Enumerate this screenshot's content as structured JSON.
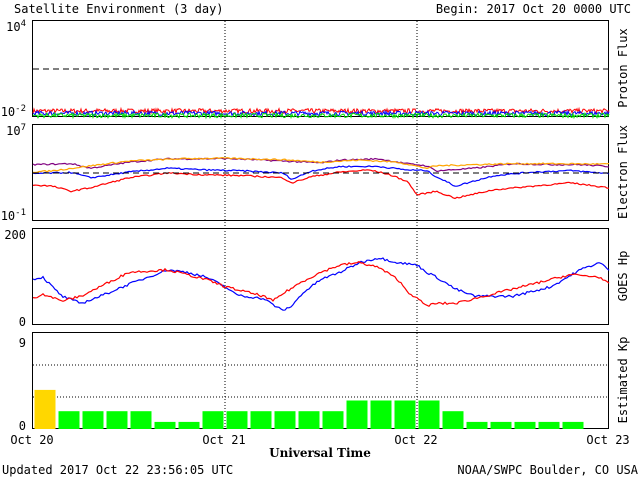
{
  "header": {
    "title": "Satellite Environment (3 day)",
    "begin": "Begin:  2017 Oct 20 0000 UTC"
  },
  "footer": {
    "updated": "Updated 2017 Oct 22 23:56:05 UTC",
    "credit": "NOAA/SWPC Boulder, CO USA"
  },
  "xaxis": {
    "label": "Universal Time",
    "ticks": [
      "Oct 20",
      "Oct 21",
      "Oct 22",
      "Oct 23"
    ]
  },
  "chart_data": [
    {
      "type": "line",
      "panel": "proton",
      "ylabel": "Proton Flux",
      "scale": "log",
      "ylim": [
        0.01,
        10000
      ],
      "yticks": [
        {
          "base": "10",
          "exp": "4"
        },
        {
          "base": "10",
          "exp": "-2"
        }
      ],
      "threshold": 10,
      "colors": [
        "#ff0000",
        "#0000ff",
        "#00dd00"
      ],
      "levels": [
        0.024,
        0.017,
        0.0125
      ]
    },
    {
      "type": "line",
      "panel": "electron",
      "ylabel": "Electron Flux",
      "scale": "log",
      "ylim": [
        0.1,
        10000000
      ],
      "yticks": [
        {
          "base": "10",
          "exp": "7"
        },
        {
          "base": "10",
          "exp": "-1"
        }
      ],
      "threshold": 1000,
      "series": [
        {
          "color": "#800080",
          "x": [
            0,
            0.2,
            0.3,
            0.5,
            0.7,
            0.8,
            1.0,
            1.1,
            1.3,
            1.5,
            1.6,
            1.8,
            1.95,
            2.05,
            2.1,
            2.3,
            2.5,
            2.7,
            2.85,
            3.0
          ],
          "y": [
            5000,
            6000,
            2500,
            8000,
            15000,
            15000,
            16000,
            14000,
            10000,
            7000,
            12000,
            15000,
            6000,
            4000,
            1500,
            2500,
            6000,
            5000,
            5000,
            3500
          ]
        },
        {
          "color": "#ffa500",
          "x": [
            0,
            0.1,
            0.3,
            0.5,
            0.8,
            1.0,
            1.3,
            1.5,
            1.7,
            1.9,
            2.05,
            2.1,
            2.3,
            2.5,
            2.7,
            3.0
          ],
          "y": [
            1200,
            1500,
            4000,
            10000,
            16000,
            17000,
            13000,
            8000,
            12000,
            8000,
            2500,
            4000,
            5000,
            6000,
            6000,
            5500
          ]
        },
        {
          "color": "#0000ff",
          "x": [
            0,
            0.2,
            0.3,
            0.5,
            0.7,
            0.9,
            1.1,
            1.3,
            1.35,
            1.45,
            1.6,
            1.8,
            1.95,
            2.05,
            2.1,
            2.2,
            2.4,
            2.6,
            2.8,
            3.0
          ],
          "y": [
            900,
            1100,
            400,
            1200,
            2500,
            1800,
            1500,
            1000,
            300,
            1500,
            3500,
            3500,
            1800,
            1600,
            500,
            80,
            600,
            1200,
            1600,
            900
          ]
        },
        {
          "color": "#ff0000",
          "x": [
            0,
            0.1,
            0.2,
            0.3,
            0.5,
            0.7,
            0.9,
            1.1,
            1.3,
            1.35,
            1.45,
            1.6,
            1.75,
            1.85,
            1.95,
            2.0,
            2.1,
            2.2,
            2.4,
            2.6,
            2.8,
            3.0
          ],
          "y": [
            100,
            80,
            30,
            60,
            400,
            1000,
            700,
            600,
            400,
            150,
            500,
            1200,
            1800,
            800,
            200,
            15,
            30,
            8,
            40,
            80,
            150,
            60
          ]
        }
      ]
    },
    {
      "type": "line",
      "panel": "goes_hp",
      "ylabel": "GOES Hp",
      "ylim": [
        0,
        200
      ],
      "yticks": [
        "200",
        "0"
      ],
      "series": [
        {
          "color": "#0000ff",
          "x": [
            0,
            0.05,
            0.15,
            0.25,
            0.35,
            0.5,
            0.7,
            0.8,
            0.9,
            1.0,
            1.05,
            1.1,
            1.2,
            1.3,
            1.35,
            1.4,
            1.5,
            1.6,
            1.7,
            1.8,
            1.9,
            2.0,
            2.05,
            2.1,
            2.2,
            2.3,
            2.5,
            2.7,
            2.85,
            2.95,
            3.0
          ],
          "y": [
            95,
            100,
            60,
            45,
            60,
            85,
            115,
            110,
            100,
            80,
            65,
            60,
            55,
            30,
            40,
            65,
            95,
            110,
            130,
            140,
            130,
            125,
            110,
            100,
            75,
            60,
            60,
            80,
            115,
            130,
            115
          ]
        },
        {
          "color": "#ff0000",
          "x": [
            0,
            0.05,
            0.15,
            0.25,
            0.4,
            0.5,
            0.7,
            0.8,
            0.9,
            1.0,
            1.1,
            1.2,
            1.25,
            1.3,
            1.4,
            1.5,
            1.6,
            1.7,
            1.8,
            1.9,
            1.95,
            2.0,
            2.05,
            2.1,
            2.2,
            2.3,
            2.4,
            2.6,
            2.8,
            2.95,
            3.0
          ],
          "y": [
            55,
            65,
            50,
            60,
            90,
            110,
            115,
            105,
            95,
            80,
            70,
            60,
            50,
            65,
            90,
            110,
            125,
            130,
            120,
            95,
            70,
            55,
            40,
            45,
            45,
            55,
            65,
            85,
            105,
            100,
            85
          ]
        }
      ]
    },
    {
      "type": "bar",
      "panel": "kp",
      "ylabel": "Estimated Kp",
      "ylim": [
        0,
        9
      ],
      "yticks": [
        "9",
        "0"
      ],
      "values": [
        3.67,
        1.67,
        1.67,
        1.67,
        1.67,
        0.67,
        0.67,
        1.67,
        1.67,
        1.67,
        1.67,
        1.67,
        1.67,
        2.67,
        2.67,
        2.67,
        2.67,
        1.67,
        0.67,
        0.67,
        0.67,
        0.67,
        0.67,
        0
      ],
      "colors": {
        "quiet": "#00ff00",
        "active": "#ffd700"
      },
      "active_threshold": 3
    }
  ]
}
